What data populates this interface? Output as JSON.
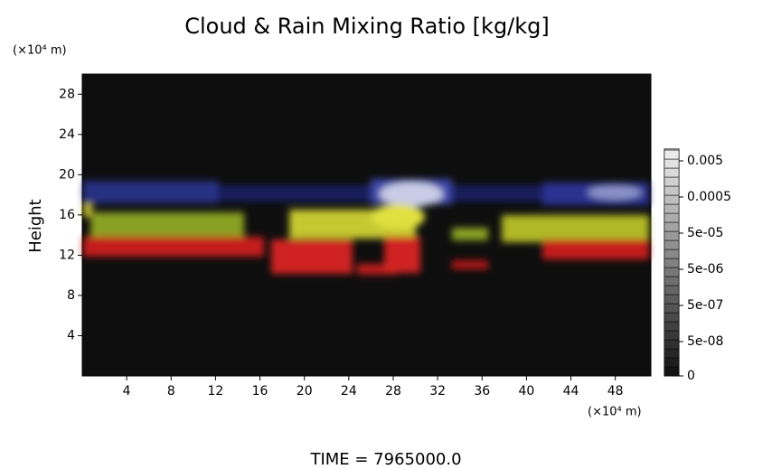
{
  "chart_data": {
    "type": "volume",
    "title": "Cloud & Rain Mixing Ratio [kg/kg]",
    "ylabel": "Height",
    "yunit": "(×10⁴ m)",
    "xunit": "(×10⁴ m)",
    "xlim": [
      0,
      51.2
    ],
    "ylim": [
      0,
      30
    ],
    "xticks": [
      4,
      8,
      12,
      16,
      20,
      24,
      28,
      32,
      36,
      40,
      44,
      48
    ],
    "yticks": [
      4,
      8,
      12,
      16,
      20,
      24,
      28
    ],
    "colorbar_ticks": [
      {
        "value": 0.005,
        "label": "0.005"
      },
      {
        "value": 0.0005,
        "label": "0.0005"
      },
      {
        "value": 5e-05,
        "label": "5e-05"
      },
      {
        "value": 5e-06,
        "label": "5e-06"
      },
      {
        "value": 5e-07,
        "label": "5e-07"
      },
      {
        "value": 5e-08,
        "label": "5e-08"
      },
      0
    ],
    "footer": "TIME = 7965000.0"
  }
}
